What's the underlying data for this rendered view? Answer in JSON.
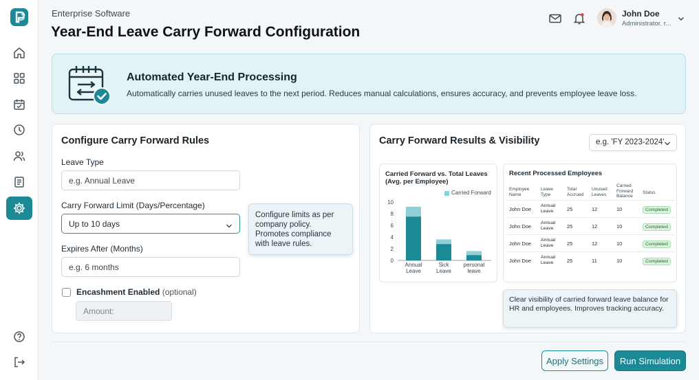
{
  "app": {
    "name": "Enterprise Software",
    "page_title": "Year-End Leave Carry Forward Configuration"
  },
  "colors": {
    "accent": "#1b8a96",
    "chart_dark": "#1b8a96",
    "chart_light": "#8fd0d8",
    "status_green": "#1c6b2c"
  },
  "sidebar": {
    "logo_icon": "app-logo-icon",
    "items": [
      {
        "icon": "home-icon",
        "active": false
      },
      {
        "icon": "grid-icon",
        "active": false
      },
      {
        "icon": "calendar-check-icon",
        "active": false
      },
      {
        "icon": "clock-icon",
        "active": false
      },
      {
        "icon": "users-icon",
        "active": false
      },
      {
        "icon": "document-icon",
        "active": false
      },
      {
        "icon": "gear-icon",
        "active": true
      }
    ],
    "bottom_items": [
      {
        "icon": "help-icon"
      },
      {
        "icon": "logout-icon"
      }
    ]
  },
  "header": {
    "mail_icon": "mail-icon",
    "bell_icon": "bell-icon",
    "user": {
      "name": "John Doe",
      "role": "Administrator. r..."
    }
  },
  "banner": {
    "title": "Automated Year-End Processing",
    "text": "Automatically carries unused leaves to the next period. Reduces manual calculations, ensures accuracy, and prevents employee leave loss."
  },
  "config": {
    "title": "Configure Carry Forward Rules",
    "leave_type": {
      "label": "Leave Type",
      "placeholder": "e.g. Annual Leave"
    },
    "limit": {
      "label": "Carry Forward Limit (Days/Percentage)",
      "value": "Up to 10 days"
    },
    "limit_tooltip": "Configure limits as per company policy. Promotes compliance with leave rules.",
    "expires": {
      "label": "Expires After (Months)",
      "placeholder": "e.g. 6 months"
    },
    "encashment": {
      "label_strong": "Encashment Enabled",
      "label_optional": "(optional)",
      "checked": false
    },
    "amount": {
      "placeholder": "Amount:"
    }
  },
  "results": {
    "title": "Carry Forward Results & Visibility",
    "fy_select": "e.g. 'FY 2023-2024'",
    "table": {
      "title": "Recent Processed Employees",
      "headers": [
        "Employee Name",
        "Leave Type",
        "Total Accrued",
        "Unused Leaves",
        "Carried Forward Balance",
        "Status"
      ],
      "rows": [
        [
          "John Doe",
          "Annual Leave",
          "25",
          "12",
          "10",
          "Completed"
        ],
        [
          "John Doe",
          "Annual Leave",
          "25",
          "12",
          "10",
          "Completed"
        ],
        [
          "John Doe",
          "Annual Leave",
          "25",
          "12",
          "10",
          "Completed"
        ],
        [
          "John Doe",
          "Annual Leave",
          "25",
          "11",
          "10",
          "Completed"
        ]
      ]
    },
    "visibility_tooltip": "Clear visibility of carried forward leave balance for HR and employees. Improves tracking accuracy."
  },
  "chart_data": {
    "type": "bar",
    "title": "Carried Forward vs. Total Leaves (Avg. per Employee)",
    "categories": [
      "Annual Leave",
      "Sick Leave",
      "personal leave"
    ],
    "series": [
      {
        "name": "Carried Forward",
        "values": [
          9.2,
          3.6,
          1.6
        ]
      },
      {
        "name": "",
        "values": [
          7.5,
          2.8,
          0.9
        ]
      }
    ],
    "ylim": [
      0,
      10
    ],
    "yticks": [
      0,
      2,
      4,
      6,
      8,
      10
    ],
    "stacked_overlay": true,
    "legend": "top-right"
  },
  "actions": {
    "apply": "Apply Settings",
    "run": "Run Simulation"
  }
}
